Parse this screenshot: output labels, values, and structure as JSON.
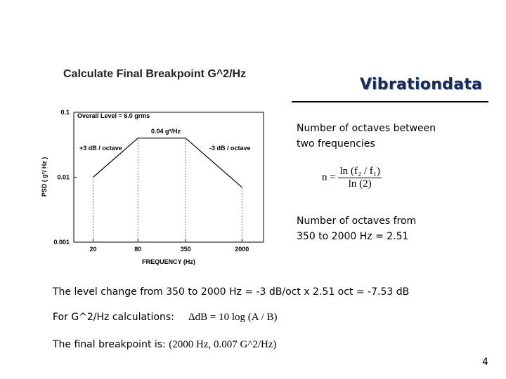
{
  "header": {
    "title": "Calculate Final Breakpoint G^2/Hz",
    "brand": "Vibrationdata"
  },
  "chart_data": {
    "type": "line",
    "x_label": "FREQUENCY (Hz)",
    "y_label": "PSD ( g²/ Hz )",
    "annotations": [
      "Overall Level = 6.0 grms",
      "0.04 g²/Hz",
      "+3 dB / octave",
      "-3 dB / octave"
    ],
    "x": [
      20,
      80,
      350,
      2000
    ],
    "series": [
      {
        "color": "#000000",
        "values": [
          0.01,
          0.04,
          0.04,
          0.007
        ]
      }
    ],
    "xlim": [
      11,
      3900
    ],
    "ylim": [
      0.001,
      0.1
    ],
    "xticks": [
      20,
      80,
      350,
      2000
    ],
    "yticks": [
      0.1,
      0.01,
      0.001
    ],
    "log_x": true,
    "log_y": true,
    "drop_lines": true
  },
  "octaves": {
    "heading": [
      "Number of octaves between",
      "two frequencies"
    ],
    "formula": {
      "lhs": "n =",
      "numerator": "ln (f₂ / f₁)",
      "denominator": "ln (2)"
    },
    "result": [
      "Number of octaves from",
      "350  to 2000 Hz = 2.51"
    ]
  },
  "body": {
    "level_change": "The level change from 350 to 2000 Hz =  -3 dB/oct  x 2.51 oct = -7.53 dB",
    "calc_label": "For G^2/Hz calculations:",
    "calc_formula": "ΔdB = 10 log (A / B)",
    "final_label": "The final breakpoint is:",
    "final_value": "(2000 Hz, 0.007 G^2/Hz)"
  },
  "page_number": "4"
}
